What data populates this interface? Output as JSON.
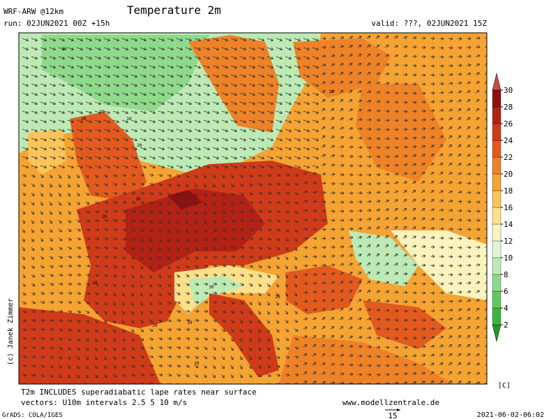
{
  "header": {
    "model": "WRF-ARW @12km",
    "title": "Temperature 2m",
    "run": "run: 02JUN2021 00Z +15h",
    "valid": "valid: ???, 02JUN2021 15Z"
  },
  "colorbar": {
    "unit": "[C]",
    "ticks": [
      2,
      4,
      6,
      8,
      10,
      12,
      14,
      16,
      18,
      20,
      22,
      24,
      26,
      28,
      30
    ],
    "colors": [
      "#1f9a2a",
      "#3cb33c",
      "#62c862",
      "#8fd98b",
      "#bdeab4",
      "#e2f5d6",
      "#fbf3bd",
      "#fde08a",
      "#fbc45a",
      "#f5a332",
      "#ee8227",
      "#e35a1e",
      "#cf3b18",
      "#b22214",
      "#8f1010",
      "#c84a4a"
    ]
  },
  "map_labels": [
    10,
    20,
    20,
    10,
    20,
    10,
    30,
    20,
    20,
    20,
    10,
    20,
    30,
    20
  ],
  "footer": {
    "note": "T2m INCLUDES superadiabatic lape rates near surface",
    "vectors": "vectors: U10m intervals 2.5 5 10 m/s",
    "website": "www.modellzentrale.de",
    "grads": "GrADS: COLA/IGES",
    "timestamp": "2021-06-02-06:02",
    "scale_arrow": 15
  },
  "credit": "(c) Janek Zimmer"
}
